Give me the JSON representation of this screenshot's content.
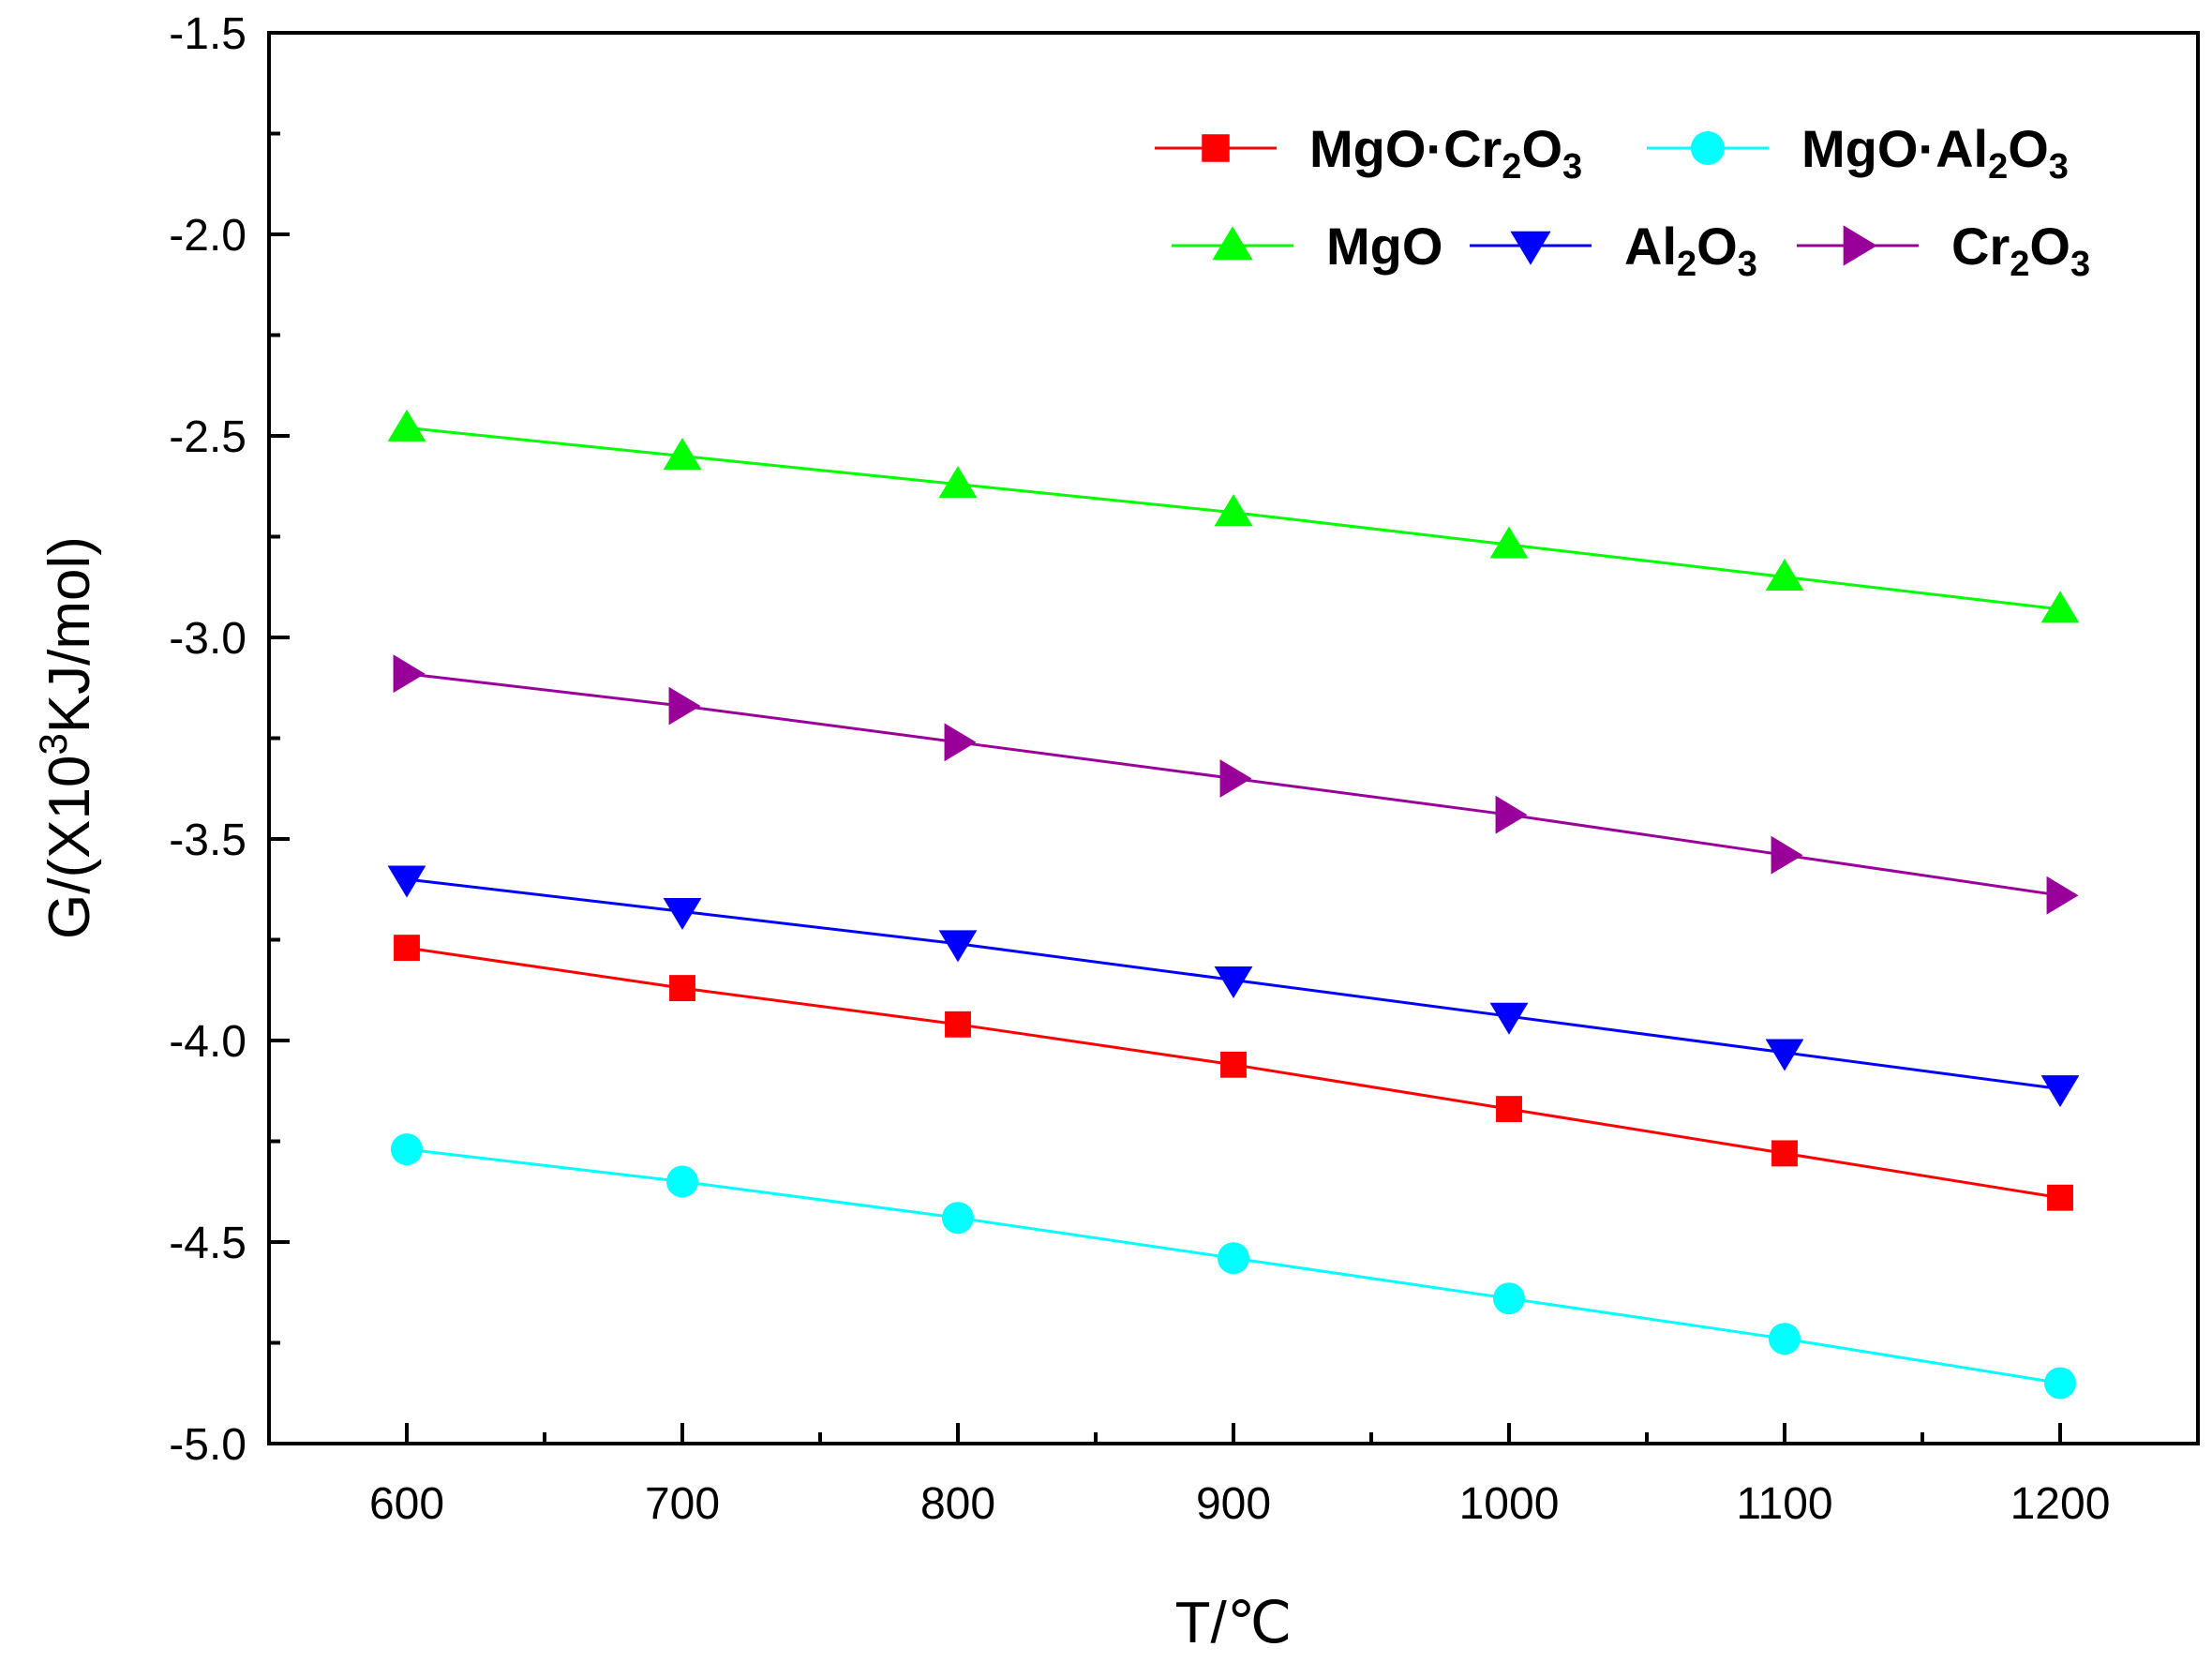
{
  "chart_data": {
    "type": "line",
    "title": "",
    "xlabel": "T/℃",
    "ylabel": "G/(X10",
    "ylabel_sup": "3",
    "ylabel_tail": "KJ/mol)",
    "xlim": [
      550,
      1250
    ],
    "ylim": [
      -5.0,
      -1.5
    ],
    "x": [
      600,
      700,
      800,
      900,
      1000,
      1100,
      1200
    ],
    "x_tick_labels": [
      "600",
      "700",
      "800",
      "900",
      "1000",
      "1100",
      "1200"
    ],
    "y_ticks": [
      -5.0,
      -4.5,
      -4.0,
      -3.5,
      -3.0,
      -2.5,
      -2.0,
      -1.5
    ],
    "y_tick_labels": [
      "-5.0",
      "-4.5",
      "-4.0",
      "-3.5",
      "-3.0",
      "-2.5",
      "-2.0",
      "-1.5"
    ],
    "grid": false,
    "legend_position": "top-right",
    "series": [
      {
        "key": "mgo-cr2o3",
        "name": "MgO·Cr2O3",
        "legend_parts": [
          [
            "MgO·Cr",
            ""
          ],
          [
            "2",
            "sub"
          ],
          [
            "O",
            ""
          ],
          [
            "3",
            "sub"
          ]
        ],
        "color": "#ff0000",
        "marker": "square",
        "values": [
          -3.77,
          -3.87,
          -3.96,
          -4.06,
          -4.17,
          -4.28,
          -4.39
        ]
      },
      {
        "key": "mgo-al2o3",
        "name": "MgO·Al2O3",
        "legend_parts": [
          [
            "MgO·Al",
            ""
          ],
          [
            "2",
            "sub"
          ],
          [
            "O",
            ""
          ],
          [
            "3",
            "sub"
          ]
        ],
        "color": "#00ffff",
        "marker": "circle",
        "values": [
          -4.27,
          -4.35,
          -4.44,
          -4.54,
          -4.64,
          -4.74,
          -4.85
        ]
      },
      {
        "key": "mgo",
        "name": "MgO",
        "legend_parts": [
          [
            "MgO",
            ""
          ]
        ],
        "color": "#00ff00",
        "marker": "triangle-up",
        "values": [
          -2.48,
          -2.55,
          -2.62,
          -2.69,
          -2.77,
          -2.85,
          -2.93
        ]
      },
      {
        "key": "al2o3",
        "name": "Al2O3",
        "legend_parts": [
          [
            "Al",
            ""
          ],
          [
            "2",
            "sub"
          ],
          [
            "O",
            ""
          ],
          [
            "3",
            "sub"
          ]
        ],
        "color": "#0000ff",
        "marker": "triangle-down",
        "values": [
          -3.6,
          -3.68,
          -3.76,
          -3.85,
          -3.94,
          -4.03,
          -4.12
        ]
      },
      {
        "key": "cr2o3",
        "name": "Cr2O3",
        "legend_parts": [
          [
            "Cr",
            ""
          ],
          [
            "2",
            "sub"
          ],
          [
            "O",
            ""
          ],
          [
            "3",
            "sub"
          ]
        ],
        "color": "#990099",
        "marker": "triangle-right",
        "values": [
          -3.09,
          -3.17,
          -3.26,
          -3.35,
          -3.44,
          -3.54,
          -3.64
        ]
      }
    ]
  }
}
